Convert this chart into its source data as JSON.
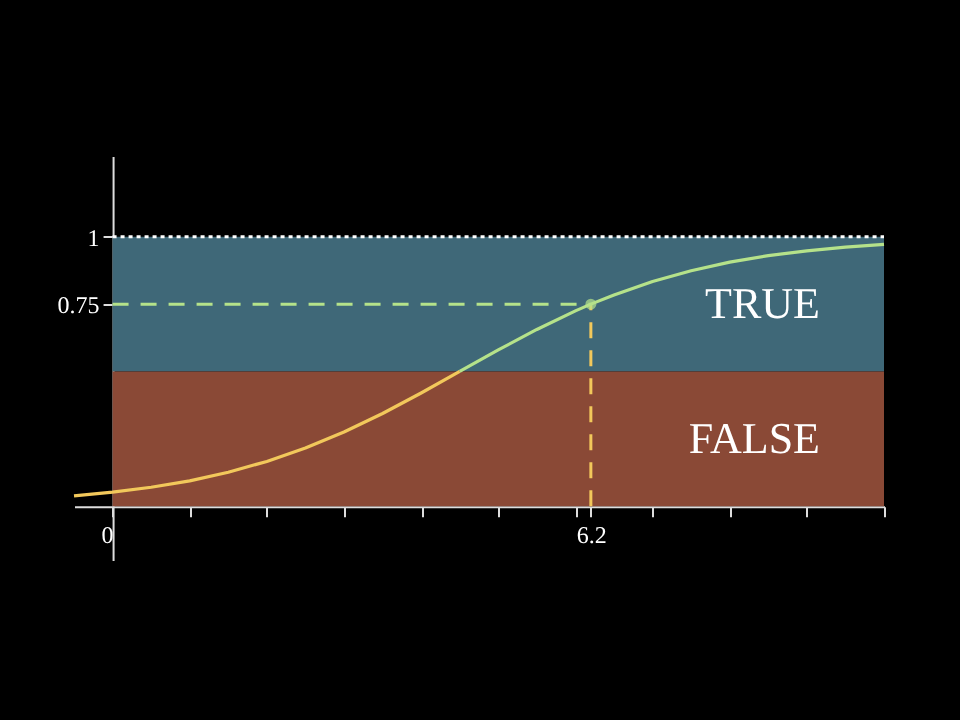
{
  "chart_data": {
    "type": "line",
    "xlim": [
      -0.5,
      10
    ],
    "ylim": [
      -0.2,
      1.3
    ],
    "xticks": [
      0,
      {
        "value": 1,
        "label": null
      },
      {
        "value": 2,
        "label": null
      },
      {
        "value": 3,
        "label": null
      },
      {
        "value": 4,
        "label": null
      },
      {
        "value": 5,
        "label": null
      },
      {
        "value": 6,
        "label": null
      },
      6.2,
      {
        "value": 7,
        "label": null
      },
      {
        "value": 8,
        "label": null
      },
      {
        "value": 9,
        "label": null
      },
      {
        "value": 10,
        "label": null
      }
    ],
    "yticks": [
      0.75,
      1
    ],
    "series": [
      {
        "color": "#f2c85b",
        "x": [
          -0.5,
          0,
          0.5,
          1,
          1.5,
          2,
          2.5,
          3,
          3.5,
          4,
          4.5
        ],
        "values": [
          0.038,
          0.052,
          0.07,
          0.094,
          0.126,
          0.166,
          0.216,
          0.275,
          0.344,
          0.42,
          0.5
        ]
      },
      {
        "color": "#b5e28a",
        "x": [
          4.5,
          5,
          5.5,
          6,
          6.2,
          6.5,
          7,
          7.5,
          8,
          8.5,
          9,
          9.5,
          10
        ],
        "values": [
          0.5,
          0.58,
          0.656,
          0.725,
          0.75,
          0.784,
          0.834,
          0.874,
          0.906,
          0.93,
          0.948,
          0.962,
          0.972
        ]
      },
      {
        "type": "scatter",
        "marker": "circle",
        "color": "#b5e28a",
        "x": [
          6.2
        ],
        "values": [
          0.75
        ]
      }
    ],
    "ref_lines": [
      {
        "axis": "y",
        "value": 1,
        "color": "#ffffff",
        "line_style": "dotted"
      },
      {
        "axis": "y",
        "value": 0.75,
        "color": "#b5e28a",
        "line_style": "dashed"
      },
      {
        "axis": "x",
        "value": 6.2,
        "color": "#f2c85b",
        "line_style": "dashed"
      }
    ],
    "bands": [
      {
        "axis": "y",
        "from": 0.5,
        "to": 1,
        "label": "TRUE",
        "color": "#3f6878"
      },
      {
        "axis": "y",
        "from": 0,
        "to": 0.5,
        "label": "FALSE",
        "color": "#8a4936"
      }
    ],
    "grid": false,
    "marker": "none"
  }
}
